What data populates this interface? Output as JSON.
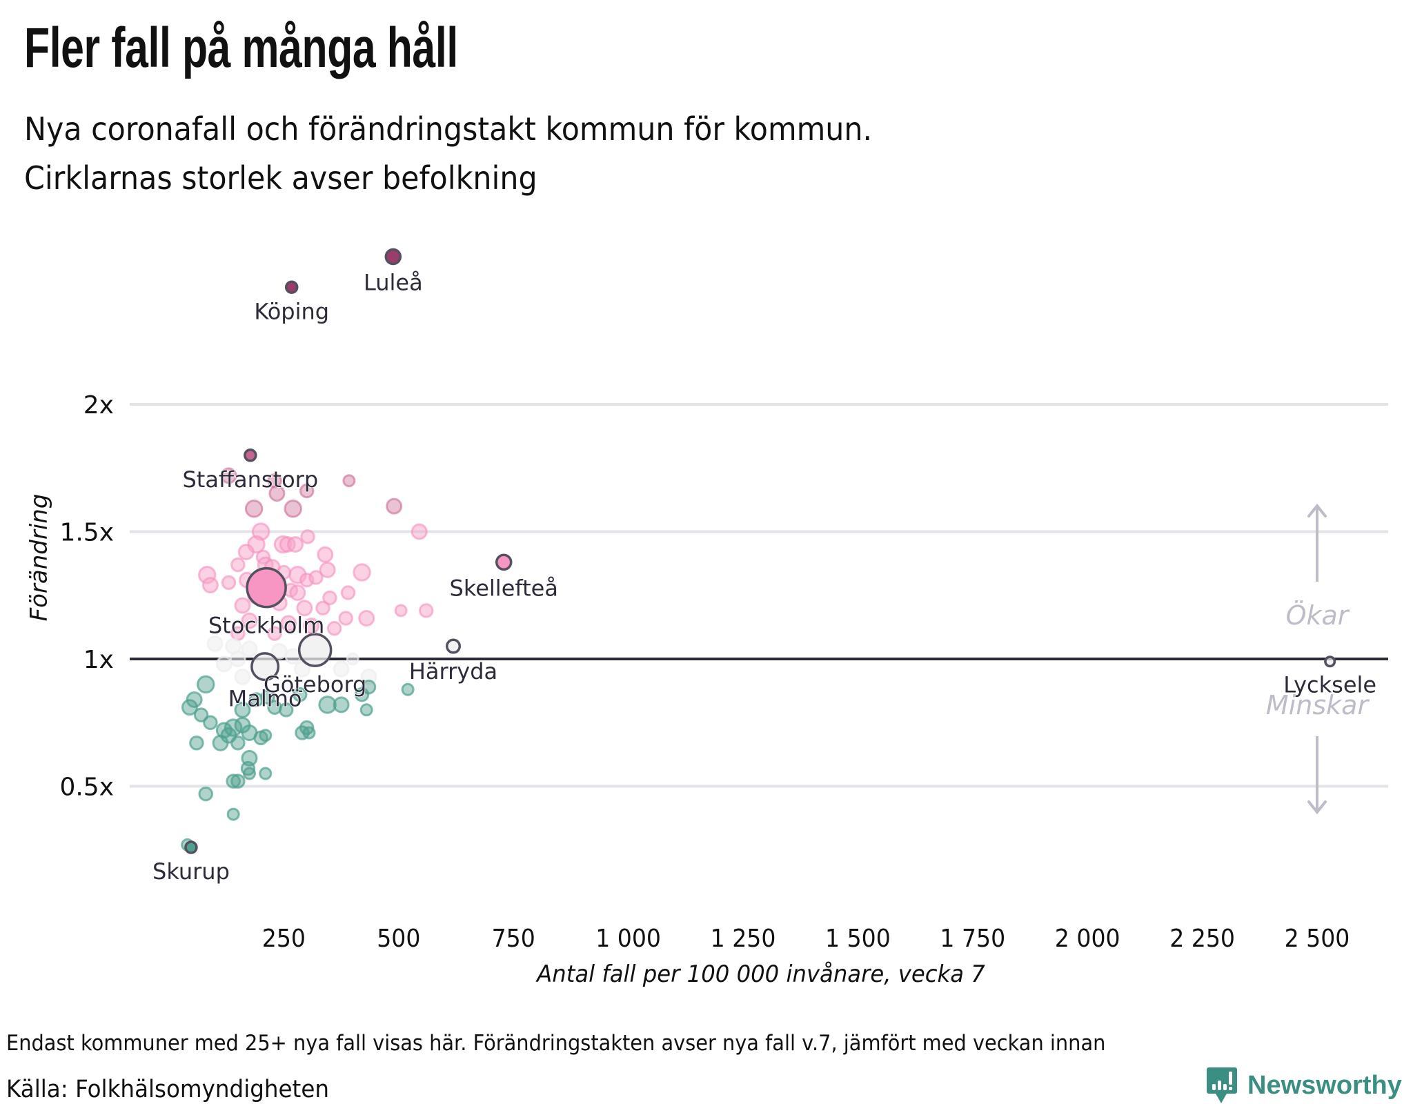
{
  "header": {
    "title": "Fler fall på många håll",
    "subtitle_lines": [
      "Nya coronafall och förändringstakt kommun för kommun.",
      "Cirklarnas storlek avser befolkning"
    ]
  },
  "footer": {
    "note": "Endast kommuner med 25+ nya fall visas här. Förändringstakten avser nya fall v.7, jämfört med veckan innan",
    "source": "Källa: Folkhälsomyndigheten",
    "brand": "Newsworthy",
    "brand_color": "#3a8f82"
  },
  "chart_data": {
    "type": "scatter",
    "title": "Fler fall på många håll",
    "xlabel": "Antal fall per 100 000 invånare, vecka 7",
    "ylabel": "Förändring",
    "xlim": [
      0,
      2620
    ],
    "ylim": [
      0.1,
      2.75
    ],
    "grid": true,
    "x_ticks": [
      {
        "value": 250,
        "label": "250"
      },
      {
        "value": 500,
        "label": "500"
      },
      {
        "value": 750,
        "label": "750"
      },
      {
        "value": 1000,
        "label": "1 000"
      },
      {
        "value": 1250,
        "label": "1 250"
      },
      {
        "value": 1500,
        "label": "1 500"
      },
      {
        "value": 1750,
        "label": "1 750"
      },
      {
        "value": 2000,
        "label": "2 000"
      },
      {
        "value": 2250,
        "label": "2 250"
      },
      {
        "value": 2500,
        "label": "2 500"
      }
    ],
    "y_ticks": [
      {
        "value": 0.5,
        "label": "0.5x"
      },
      {
        "value": 1,
        "label": "1x"
      },
      {
        "value": 1.5,
        "label": "1.5x"
      },
      {
        "value": 2,
        "label": "2x"
      }
    ],
    "reference_line": 1,
    "annotations": {
      "up": "Ökar",
      "down": "Minskar"
    },
    "colors": {
      "strong_increase": "#9b3d6a",
      "increase_high": "#d98fae",
      "increase": "#f9a3c9",
      "neutral": "#eeeeee",
      "decrease": "#4fa08f",
      "gridline": "#e3e3e8",
      "reference": "#2d2b3a",
      "annotation": "#bdbcc8",
      "label": "#2d2b3a"
    },
    "labeled_points": [
      {
        "name": "Luleå",
        "x": 488,
        "y": 2.58,
        "size": 3,
        "label_pos": "below"
      },
      {
        "name": "Köping",
        "x": 267,
        "y": 2.46,
        "size": 2,
        "label_pos": "below"
      },
      {
        "name": "Staffanstorp",
        "x": 177,
        "y": 1.8,
        "size": 2,
        "label_pos": "below"
      },
      {
        "name": "Skellefteå",
        "x": 729,
        "y": 1.38,
        "size": 3,
        "label_pos": "below"
      },
      {
        "name": "Stockholm",
        "x": 212,
        "y": 1.28,
        "size": 10,
        "label_pos": "below"
      },
      {
        "name": "Härryda",
        "x": 619,
        "y": 1.05,
        "size": 2.5,
        "label_pos": "below"
      },
      {
        "name": "Göteborg",
        "x": 318,
        "y": 1.035,
        "size": 8,
        "label_pos": "below"
      },
      {
        "name": "Malmö",
        "x": 209,
        "y": 0.97,
        "size": 6.5,
        "label_pos": "below"
      },
      {
        "name": "Lycksele",
        "x": 2528,
        "y": 0.99,
        "size": 1.5,
        "label_pos": "below"
      },
      {
        "name": "Skurup",
        "x": 48,
        "y": 0.26,
        "size": 2,
        "label_pos": "below"
      }
    ],
    "points": [
      {
        "x": 130,
        "y": 1.72,
        "size": 3
      },
      {
        "x": 230,
        "y": 1.7,
        "size": 2.5
      },
      {
        "x": 235,
        "y": 1.65,
        "size": 3
      },
      {
        "x": 300,
        "y": 1.66,
        "size": 2.5
      },
      {
        "x": 392,
        "y": 1.7,
        "size": 2
      },
      {
        "x": 185,
        "y": 1.59,
        "size": 3.5
      },
      {
        "x": 270,
        "y": 1.59,
        "size": 3.5
      },
      {
        "x": 490,
        "y": 1.6,
        "size": 3
      },
      {
        "x": 200,
        "y": 1.5,
        "size": 3.5
      },
      {
        "x": 545,
        "y": 1.5,
        "size": 3
      },
      {
        "x": 190,
        "y": 1.45,
        "size": 3.5
      },
      {
        "x": 248,
        "y": 1.45,
        "size": 3.5
      },
      {
        "x": 258,
        "y": 1.45,
        "size": 3
      },
      {
        "x": 275,
        "y": 1.45,
        "size": 3
      },
      {
        "x": 302,
        "y": 1.48,
        "size": 2.5
      },
      {
        "x": 168,
        "y": 1.42,
        "size": 3
      },
      {
        "x": 340,
        "y": 1.41,
        "size": 3
      },
      {
        "x": 205,
        "y": 1.4,
        "size": 2.5
      },
      {
        "x": 150,
        "y": 1.37,
        "size": 2.5
      },
      {
        "x": 210,
        "y": 1.37,
        "size": 3
      },
      {
        "x": 225,
        "y": 1.36,
        "size": 3
      },
      {
        "x": 250,
        "y": 1.34,
        "size": 2.5
      },
      {
        "x": 83,
        "y": 1.33,
        "size": 3.5
      },
      {
        "x": 280,
        "y": 1.33,
        "size": 3.5
      },
      {
        "x": 345,
        "y": 1.35,
        "size": 3
      },
      {
        "x": 420,
        "y": 1.34,
        "size": 3.5
      },
      {
        "x": 170,
        "y": 1.31,
        "size": 3
      },
      {
        "x": 300,
        "y": 1.31,
        "size": 2.5
      },
      {
        "x": 320,
        "y": 1.32,
        "size": 2.5
      },
      {
        "x": 90,
        "y": 1.29,
        "size": 3
      },
      {
        "x": 130,
        "y": 1.3,
        "size": 2.5
      },
      {
        "x": 190,
        "y": 1.25,
        "size": 3.5
      },
      {
        "x": 265,
        "y": 1.27,
        "size": 2.5
      },
      {
        "x": 280,
        "y": 1.26,
        "size": 3
      },
      {
        "x": 350,
        "y": 1.24,
        "size": 2.5
      },
      {
        "x": 390,
        "y": 1.26,
        "size": 2.5
      },
      {
        "x": 160,
        "y": 1.21,
        "size": 3
      },
      {
        "x": 240,
        "y": 1.22,
        "size": 3
      },
      {
        "x": 295,
        "y": 1.2,
        "size": 3
      },
      {
        "x": 335,
        "y": 1.2,
        "size": 2.5
      },
      {
        "x": 505,
        "y": 1.19,
        "size": 2
      },
      {
        "x": 560,
        "y": 1.19,
        "size": 2.5
      },
      {
        "x": 175,
        "y": 1.15,
        "size": 3
      },
      {
        "x": 260,
        "y": 1.14,
        "size": 3
      },
      {
        "x": 310,
        "y": 1.13,
        "size": 3
      },
      {
        "x": 360,
        "y": 1.12,
        "size": 2.5
      },
      {
        "x": 385,
        "y": 1.16,
        "size": 2.5
      },
      {
        "x": 430,
        "y": 1.16,
        "size": 3
      },
      {
        "x": 150,
        "y": 1.1,
        "size": 2.5
      },
      {
        "x": 230,
        "y": 1.1,
        "size": 2.5
      },
      {
        "x": 100,
        "y": 1.06,
        "size": 3,
        "neutral": true
      },
      {
        "x": 140,
        "y": 1.05,
        "size": 3,
        "neutral": true
      },
      {
        "x": 175,
        "y": 1.04,
        "size": 3,
        "neutral": true
      },
      {
        "x": 240,
        "y": 1.03,
        "size": 3,
        "neutral": true
      },
      {
        "x": 270,
        "y": 1.01,
        "size": 3,
        "neutral": true
      },
      {
        "x": 150,
        "y": 1.0,
        "size": 3,
        "neutral": true
      },
      {
        "x": 120,
        "y": 0.98,
        "size": 3,
        "neutral": true
      },
      {
        "x": 290,
        "y": 0.96,
        "size": 3,
        "neutral": true
      },
      {
        "x": 375,
        "y": 0.96,
        "size": 3,
        "neutral": true
      },
      {
        "x": 435,
        "y": 0.93,
        "size": 3,
        "neutral": true
      },
      {
        "x": 160,
        "y": 0.93,
        "size": 3,
        "neutral": true
      },
      {
        "x": 400,
        "y": 1.0,
        "size": 2,
        "neutral": true
      },
      {
        "x": 80,
        "y": 0.9,
        "size": 3.5
      },
      {
        "x": 55,
        "y": 0.84,
        "size": 3
      },
      {
        "x": 45,
        "y": 0.81,
        "size": 3
      },
      {
        "x": 70,
        "y": 0.78,
        "size": 2.5
      },
      {
        "x": 90,
        "y": 0.75,
        "size": 2.5
      },
      {
        "x": 160,
        "y": 0.8,
        "size": 3
      },
      {
        "x": 190,
        "y": 0.84,
        "size": 2.5
      },
      {
        "x": 215,
        "y": 0.85,
        "size": 2.5
      },
      {
        "x": 230,
        "y": 0.81,
        "size": 2.5
      },
      {
        "x": 255,
        "y": 0.8,
        "size": 2.5
      },
      {
        "x": 285,
        "y": 0.86,
        "size": 2.5
      },
      {
        "x": 345,
        "y": 0.82,
        "size": 3.5
      },
      {
        "x": 375,
        "y": 0.82,
        "size": 3
      },
      {
        "x": 420,
        "y": 0.86,
        "size": 2.5
      },
      {
        "x": 435,
        "y": 0.89,
        "size": 2.5
      },
      {
        "x": 520,
        "y": 0.88,
        "size": 2
      },
      {
        "x": 430,
        "y": 0.8,
        "size": 2
      },
      {
        "x": 120,
        "y": 0.72,
        "size": 3
      },
      {
        "x": 130,
        "y": 0.7,
        "size": 3
      },
      {
        "x": 140,
        "y": 0.73,
        "size": 3.5
      },
      {
        "x": 160,
        "y": 0.74,
        "size": 3
      },
      {
        "x": 175,
        "y": 0.71,
        "size": 3
      },
      {
        "x": 112,
        "y": 0.67,
        "size": 3
      },
      {
        "x": 150,
        "y": 0.67,
        "size": 2.5
      },
      {
        "x": 200,
        "y": 0.69,
        "size": 2.5
      },
      {
        "x": 210,
        "y": 0.7,
        "size": 2
      },
      {
        "x": 290,
        "y": 0.71,
        "size": 2.5
      },
      {
        "x": 300,
        "y": 0.73,
        "size": 2.5
      },
      {
        "x": 305,
        "y": 0.71,
        "size": 2
      },
      {
        "x": 60,
        "y": 0.67,
        "size": 2.5
      },
      {
        "x": 175,
        "y": 0.61,
        "size": 3
      },
      {
        "x": 172,
        "y": 0.57,
        "size": 2.5
      },
      {
        "x": 175,
        "y": 0.55,
        "size": 2
      },
      {
        "x": 210,
        "y": 0.55,
        "size": 2
      },
      {
        "x": 140,
        "y": 0.52,
        "size": 2.5
      },
      {
        "x": 150,
        "y": 0.52,
        "size": 2.5
      },
      {
        "x": 80,
        "y": 0.47,
        "size": 2.5
      },
      {
        "x": 140,
        "y": 0.39,
        "size": 2
      },
      {
        "x": 40,
        "y": 0.27,
        "size": 2
      }
    ]
  }
}
